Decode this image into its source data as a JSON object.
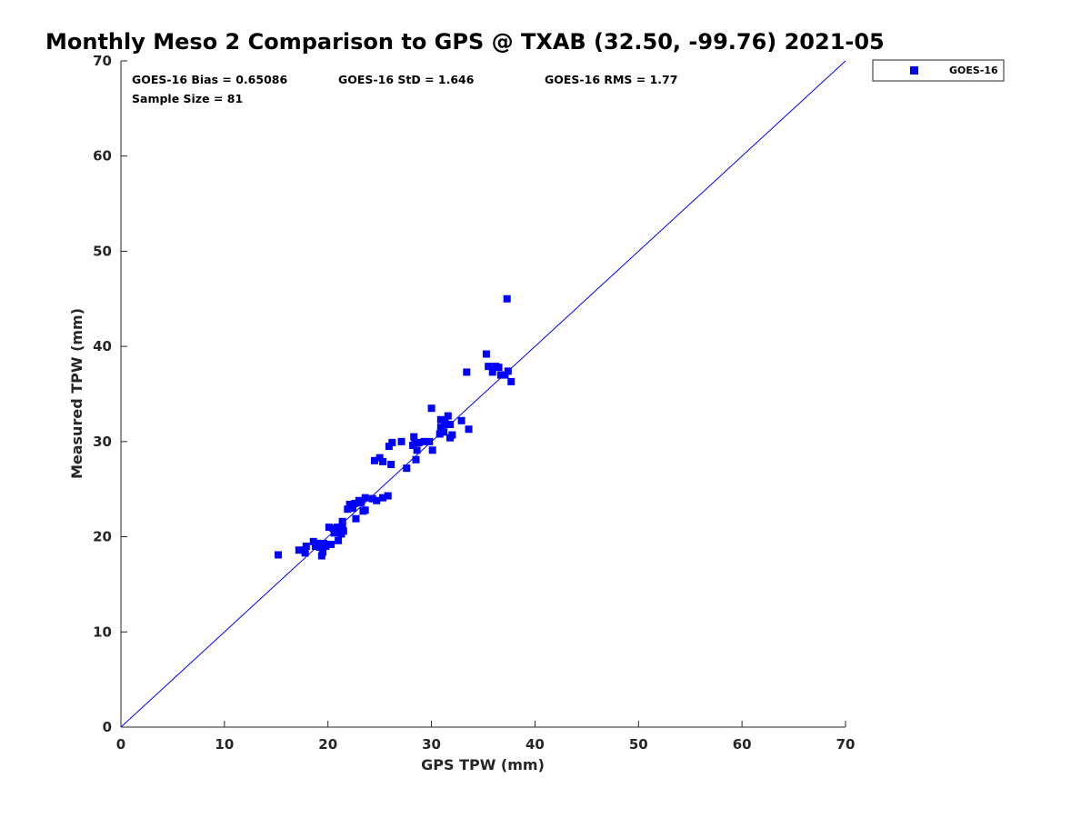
{
  "chart_data": {
    "type": "scatter",
    "title": "Monthly Meso 2 Comparison to GPS @ TXAB (32.50, -99.76) 2021-05",
    "xlabel": "GPS TPW (mm)",
    "ylabel": "Measured TPW (mm)",
    "xlim": [
      0,
      70
    ],
    "ylim": [
      0,
      70
    ],
    "xticks": [
      "0",
      "10",
      "20",
      "30",
      "40",
      "50",
      "60",
      "70"
    ],
    "yticks": [
      "0",
      "10",
      "20",
      "30",
      "40",
      "50",
      "60",
      "70"
    ],
    "grid": false,
    "legend": {
      "placement": "outside-top-right",
      "entries": [
        "GOES-16"
      ]
    },
    "stats": {
      "bias": "GOES-16 Bias = 0.65086",
      "std": "GOES-16 StD = 1.646",
      "rms": "GOES-16 RMS = 1.77",
      "sample": "Sample Size = 81"
    },
    "reference_line": {
      "x": [
        0,
        70
      ],
      "y": [
        0,
        70
      ],
      "color": "#0000ff"
    },
    "series": [
      {
        "name": "GOES-16",
        "color": "#0000ff",
        "marker": "square",
        "points": [
          [
            15.2,
            18.1
          ],
          [
            17.2,
            18.6
          ],
          [
            17.7,
            18.6
          ],
          [
            17.9,
            19.0
          ],
          [
            17.8,
            18.3
          ],
          [
            18.6,
            19.5
          ],
          [
            18.8,
            19.0
          ],
          [
            19.0,
            19.3
          ],
          [
            19.2,
            18.9
          ],
          [
            19.5,
            18.4
          ],
          [
            19.4,
            18.0
          ],
          [
            19.6,
            19.3
          ],
          [
            19.8,
            19.0
          ],
          [
            20.1,
            21.0
          ],
          [
            20.3,
            19.2
          ],
          [
            20.5,
            20.9
          ],
          [
            20.6,
            20.4
          ],
          [
            20.8,
            20.5
          ],
          [
            20.9,
            21.0
          ],
          [
            21.0,
            19.6
          ],
          [
            21.2,
            20.8
          ],
          [
            21.3,
            20.3
          ],
          [
            21.4,
            21.2
          ],
          [
            21.4,
            21.6
          ],
          [
            21.5,
            20.6
          ],
          [
            21.9,
            22.9
          ],
          [
            22.1,
            23.4
          ],
          [
            22.3,
            23.3
          ],
          [
            22.4,
            23.0
          ],
          [
            22.6,
            23.5
          ],
          [
            22.7,
            21.9
          ],
          [
            23.0,
            23.8
          ],
          [
            23.2,
            23.6
          ],
          [
            23.4,
            22.7
          ],
          [
            23.6,
            22.8
          ],
          [
            23.6,
            24.1
          ],
          [
            24.3,
            24.0
          ],
          [
            24.5,
            28.0
          ],
          [
            24.7,
            23.8
          ],
          [
            25.0,
            28.3
          ],
          [
            25.3,
            24.1
          ],
          [
            25.3,
            27.9
          ],
          [
            25.8,
            24.3
          ],
          [
            25.9,
            29.5
          ],
          [
            26.1,
            27.6
          ],
          [
            26.2,
            29.9
          ],
          [
            27.1,
            30.0
          ],
          [
            27.6,
            27.2
          ],
          [
            28.2,
            29.6
          ],
          [
            28.3,
            30.5
          ],
          [
            28.4,
            29.9
          ],
          [
            28.5,
            28.1
          ],
          [
            28.6,
            29.1
          ],
          [
            28.8,
            29.9
          ],
          [
            29.3,
            30.0
          ],
          [
            29.8,
            30.0
          ],
          [
            30.0,
            33.5
          ],
          [
            30.1,
            29.1
          ],
          [
            30.8,
            30.8
          ],
          [
            30.9,
            31.5
          ],
          [
            30.9,
            32.3
          ],
          [
            31.2,
            31.0
          ],
          [
            31.3,
            32.2
          ],
          [
            31.4,
            31.8
          ],
          [
            31.6,
            32.7
          ],
          [
            31.8,
            31.8
          ],
          [
            31.8,
            30.4
          ],
          [
            32.0,
            30.7
          ],
          [
            32.9,
            32.2
          ],
          [
            33.4,
            37.3
          ],
          [
            33.6,
            31.3
          ],
          [
            35.3,
            39.2
          ],
          [
            35.5,
            37.9
          ],
          [
            35.9,
            37.3
          ],
          [
            36.2,
            37.9
          ],
          [
            36.5,
            37.8
          ],
          [
            36.7,
            37.0
          ],
          [
            37.1,
            37.0
          ],
          [
            37.3,
            45.0
          ],
          [
            37.4,
            37.4
          ],
          [
            37.7,
            36.3
          ]
        ]
      }
    ]
  }
}
